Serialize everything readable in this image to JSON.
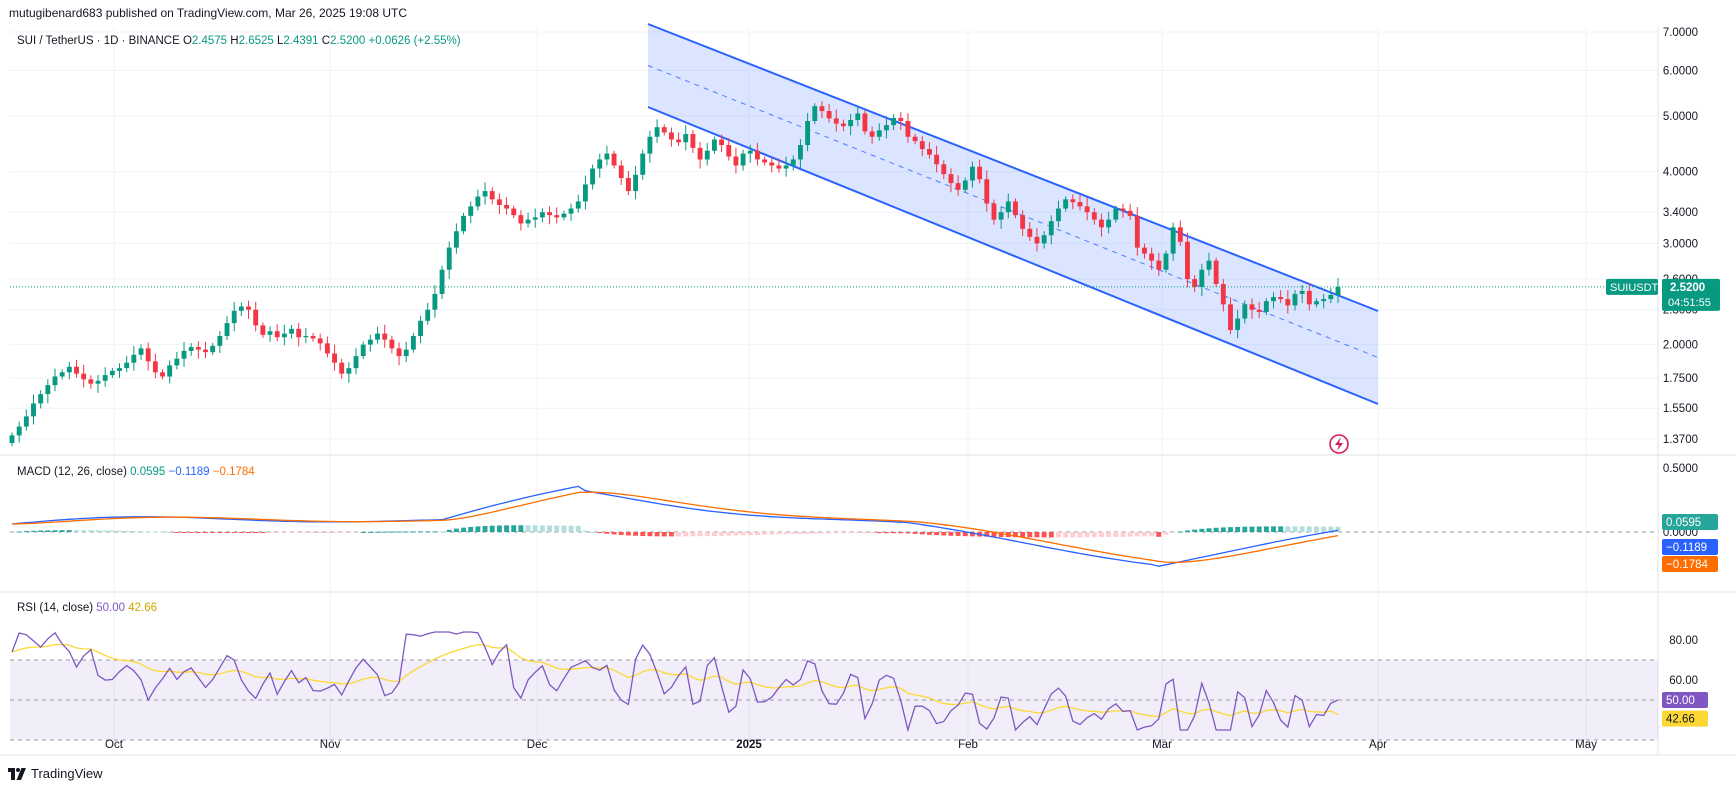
{
  "header": {
    "text": "mutugibenard683 published on TradingView.com, Mar 26, 2025 19:08 UTC"
  },
  "legend": {
    "symbol": "SUI / TetherUS · 1D · BINANCE",
    "o_label": "O",
    "o": "2.4575",
    "h_label": "H",
    "h": "2.6525",
    "l_label": "L",
    "l": "2.4391",
    "c_label": "C",
    "c": "2.5200",
    "change": "+0.0626 (+2.55%)"
  },
  "price_axis": [
    "7.0000",
    "6.0000",
    "5.0000",
    "4.0000",
    "3.4000",
    "3.0000",
    "2.6000",
    "2.3000",
    "2.0000",
    "1.7500",
    "1.5500",
    "1.3700"
  ],
  "price_tag": {
    "symbol": "SUIUSDT",
    "price": "2.5200",
    "countdown": "04:51:55"
  },
  "macd": {
    "label": "MACD (12, 26, close)",
    "hist": "0.0595",
    "macd": "−0.1189",
    "signal": "−0.1784",
    "axis": [
      "0.5000",
      "0.0000"
    ]
  },
  "rsi": {
    "label": "RSI (14, close)",
    "value": "50.00",
    "ma": "42.66",
    "axis": [
      "80.00",
      "60.00"
    ]
  },
  "time_axis": [
    "Oct",
    "Nov",
    "Dec",
    "2025",
    "Feb",
    "Mar",
    "Apr",
    "May"
  ],
  "footer": {
    "brand": "TradingView"
  },
  "colors": {
    "up": "#089981",
    "down": "#f23645",
    "channel": "#2962ff",
    "macd": "#2962ff",
    "signal": "#ff6d00",
    "rsi": "#7e57c2",
    "rsi_ma": "#fdd835"
  },
  "chart_data": {
    "type": "candlestick",
    "title": "SUI / TetherUS · 1D · BINANCE",
    "scale": "log",
    "ylim": [
      1.3,
      7.2
    ],
    "x_range": [
      "2024-09-19",
      "2025-05-20"
    ],
    "current_price": 2.52,
    "closes": [
      1.39,
      1.44,
      1.5,
      1.58,
      1.64,
      1.7,
      1.76,
      1.79,
      1.83,
      1.78,
      1.74,
      1.71,
      1.73,
      1.77,
      1.8,
      1.82,
      1.86,
      1.92,
      1.97,
      1.87,
      1.79,
      1.76,
      1.84,
      1.89,
      1.95,
      1.98,
      1.96,
      1.94,
      1.99,
      2.07,
      2.18,
      2.29,
      2.33,
      2.3,
      2.16,
      2.08,
      2.11,
      2.06,
      2.09,
      2.13,
      2.06,
      2.07,
      2.05,
      2.01,
      1.93,
      1.86,
      1.78,
      1.82,
      1.91,
      2.0,
      2.04,
      2.09,
      2.04,
      1.97,
      1.91,
      1.96,
      2.07,
      2.2,
      2.3,
      2.45,
      2.7,
      2.95,
      3.15,
      3.35,
      3.48,
      3.62,
      3.7,
      3.58,
      3.5,
      3.45,
      3.36,
      3.25,
      3.3,
      3.33,
      3.4,
      3.36,
      3.33,
      3.38,
      3.45,
      3.55,
      3.8,
      4.05,
      4.2,
      4.3,
      4.1,
      3.9,
      3.7,
      3.95,
      4.3,
      4.6,
      4.78,
      4.68,
      4.55,
      4.5,
      4.65,
      4.4,
      4.2,
      4.35,
      4.55,
      4.45,
      4.25,
      4.1,
      4.3,
      4.35,
      4.2,
      4.15,
      4.1,
      4.05,
      4.1,
      4.2,
      4.45,
      4.9,
      5.2,
      5.1,
      4.95,
      4.85,
      4.8,
      4.92,
      5.05,
      4.7,
      4.6,
      4.72,
      4.82,
      4.96,
      4.9,
      4.6,
      4.52,
      4.38,
      4.28,
      4.12,
      3.96,
      3.82,
      3.72,
      3.86,
      4.08,
      3.88,
      3.52,
      3.3,
      3.4,
      3.55,
      3.36,
      3.18,
      3.08,
      3.0,
      3.1,
      3.28,
      3.45,
      3.58,
      3.54,
      3.48,
      3.4,
      3.3,
      3.2,
      3.3,
      3.45,
      3.42,
      3.35,
      2.95,
      2.88,
      2.8,
      2.7,
      2.88,
      3.2,
      3.02,
      2.6,
      2.52,
      2.7,
      2.8,
      2.55,
      2.35,
      2.12,
      2.22,
      2.35,
      2.3,
      2.28,
      2.38,
      2.42,
      2.4,
      2.34,
      2.45,
      2.48,
      2.35,
      2.38,
      2.4,
      2.44,
      2.52
    ]
  }
}
